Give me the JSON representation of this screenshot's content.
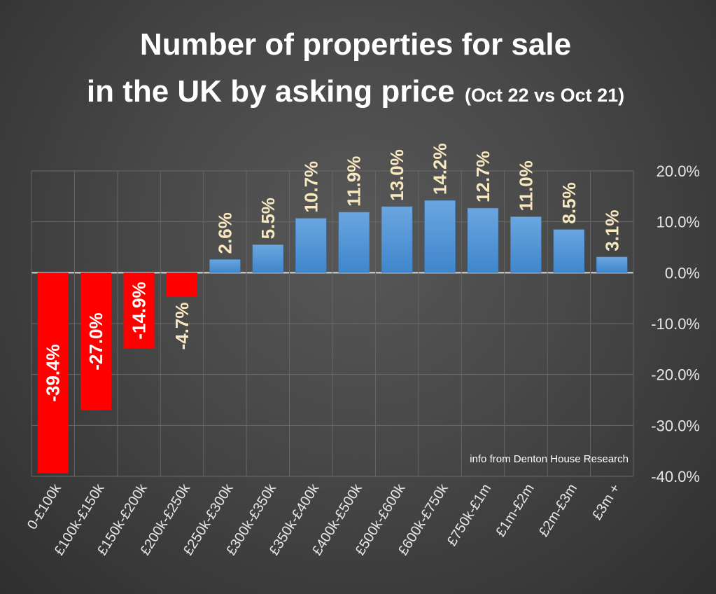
{
  "chart_data": {
    "type": "bar",
    "title_line1": "Number of properties for sale",
    "title_line2": "in the UK by asking price",
    "subtitle": "(Oct 22 vs Oct 21)",
    "categories": [
      "0-£100k",
      "£100k-£150k",
      "£150k-£200k",
      "£200k-£250k",
      "£250k-£300k",
      "£300k-£350k",
      "£350k-£400k",
      "£400k-£500k",
      "£500k-£600k",
      "£600k-£750k",
      "£750k-£1m",
      "£1m-£2m",
      "£2m-£3m",
      "£3m +"
    ],
    "values": [
      -39.4,
      -27.0,
      -14.9,
      -4.7,
      2.6,
      5.5,
      10.7,
      11.9,
      13.0,
      14.2,
      12.7,
      11.0,
      8.5,
      3.1
    ],
    "data_labels": [
      "-39.4%",
      "-27.0%",
      "-14.9%",
      "-4.7%",
      "2.6%",
      "5.5%",
      "10.7%",
      "11.9%",
      "13.0%",
      "14.2%",
      "12.7%",
      "11.0%",
      "8.5%",
      "3.1%"
    ],
    "ylim": [
      -40,
      20
    ],
    "yticks": [
      20,
      10,
      0,
      -10,
      -20,
      -30,
      -40
    ],
    "ytick_labels": [
      "20.0%",
      "10.0%",
      "0.0%",
      "-10.0%",
      "-20.0%",
      "-30.0%",
      "-40.0%"
    ],
    "y_axis_side": "right",
    "grid": true,
    "xlabel": "",
    "ylabel": "",
    "annotation": "info from Denton House Research",
    "colors": {
      "negative": "#ff0000",
      "positive": "#5b9bd5",
      "label_positive": "#f8e8c0",
      "label_inside": "#ffffff"
    }
  }
}
